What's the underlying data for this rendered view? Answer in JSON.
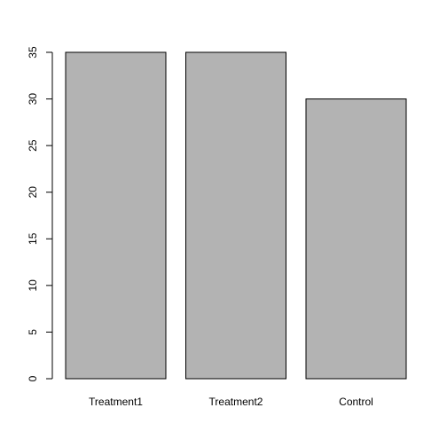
{
  "chart_data": {
    "type": "bar",
    "categories": [
      "Treatment1",
      "Treatment2",
      "Control"
    ],
    "values": [
      35,
      35,
      30
    ],
    "title": "",
    "xlabel": "",
    "ylabel": "",
    "ylim": [
      0,
      35
    ],
    "yticks": [
      0,
      5,
      10,
      15,
      20,
      25,
      30,
      35
    ],
    "grid": false,
    "bar_color": "#b3b3b3",
    "bar_border_color": "#000000"
  }
}
